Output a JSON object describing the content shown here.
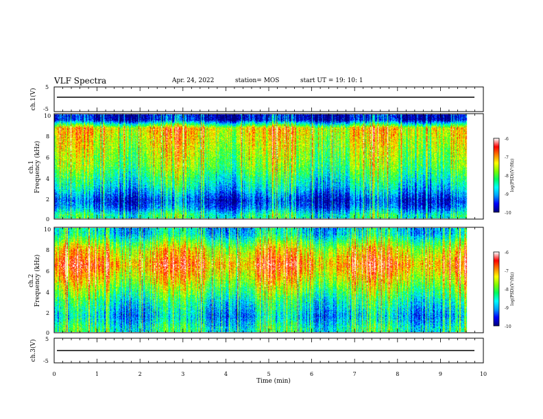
{
  "header": {
    "title": "VLF Spectra",
    "date": "Apr. 24, 2022",
    "station": "station= MOS",
    "start_ut": "start  UT =   19: 10: 1"
  },
  "panels": {
    "ch1_voltage": {
      "ylabel": "ch.1(V)",
      "yticks": [
        "5",
        "-5"
      ]
    },
    "ch1_spectrogram": {
      "ylabel_top": "ch.1",
      "ylabel": "Frequency (kHz)",
      "yticks": [
        "10",
        "8",
        "6",
        "4",
        "2",
        "0"
      ]
    },
    "ch2_spectrogram": {
      "ylabel_top": "ch.2",
      "ylabel": "Frequency (kHz)",
      "yticks": [
        "10",
        "8",
        "6",
        "4",
        "2",
        "0"
      ]
    },
    "ch3_voltage": {
      "ylabel": "ch.3(V)",
      "yticks": [
        "5",
        "-5"
      ]
    }
  },
  "colorbar": {
    "label": "log(PSD)(V²/Hz)",
    "ticks": [
      "-6",
      "-7",
      "-8",
      "-9",
      "-10"
    ],
    "colors": [
      "#000080",
      "#0000ff",
      "#00a0ff",
      "#00ffff",
      "#00ff60",
      "#80ff00",
      "#ffff00",
      "#ff8000",
      "#ff0000",
      "#ffffff"
    ]
  },
  "chart_data": {
    "type": "heatmap",
    "title": "VLF Spectra",
    "xlabel": "Time (min)",
    "xticks": [
      "0",
      "1",
      "2",
      "3",
      "4",
      "5",
      "6",
      "7",
      "8",
      "9",
      "10"
    ],
    "xlim": [
      0,
      10
    ],
    "data_end_min": 9.8,
    "frequency_range_khz": [
      0,
      10
    ],
    "color_range_log_psd": [
      -10,
      -6
    ],
    "series": [
      {
        "name": "ch.1",
        "typical_log_psd_by_freq_khz": {
          "0.3": -8.5,
          "1": -9.3,
          "1.7": -9.6,
          "3": -8.8,
          "5": -8.0,
          "7": -7.6,
          "8.7": -7.3,
          "9.5": -9.8
        }
      },
      {
        "name": "ch.2",
        "typical_log_psd_by_freq_khz": {
          "0.3": -8.5,
          "1.5": -9.0,
          "3": -8.5,
          "5": -7.5,
          "6.5": -6.9,
          "8": -7.5,
          "9.5": -8.8
        }
      }
    ]
  }
}
